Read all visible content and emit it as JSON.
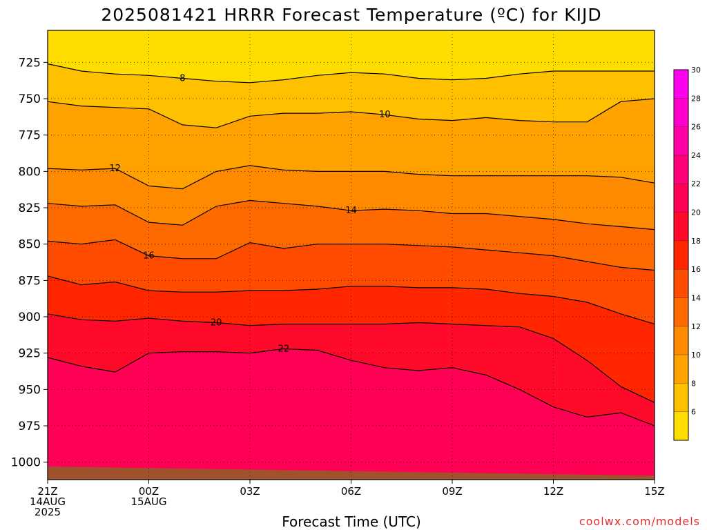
{
  "chart_data": {
    "type": "heatmap",
    "title": "2025081421 HRRR Forecast Temperature (ºC) for KIJD",
    "xlabel": "Forecast Time (UTC)",
    "ylabel": "",
    "y_axis": {
      "levels": [
        1000,
        975,
        950,
        925,
        900,
        875,
        850,
        825,
        800,
        775,
        750,
        725
      ],
      "ticks": [
        "1000",
        "975",
        "950",
        "925",
        "900",
        "875",
        "850",
        "825",
        "800",
        "775",
        "750",
        "725"
      ],
      "range": [
        1012,
        703
      ]
    },
    "x_axis": {
      "range_hours": [
        21,
        39
      ],
      "ticks": [
        {
          "hour": 21,
          "lines": [
            "21Z",
            "14AUG",
            "2025"
          ]
        },
        {
          "hour": 24,
          "lines": [
            "00Z",
            "15AUG"
          ]
        },
        {
          "hour": 27,
          "lines": [
            "03Z"
          ]
        },
        {
          "hour": 30,
          "lines": [
            "06Z"
          ]
        },
        {
          "hour": 33,
          "lines": [
            "09Z"
          ]
        },
        {
          "hour": 36,
          "lines": [
            "12Z"
          ]
        },
        {
          "hour": 39,
          "lines": [
            "15Z"
          ]
        }
      ]
    },
    "grid": true,
    "colorbar": {
      "placement": "right",
      "tick_labels": [
        "6",
        "8",
        "10",
        "12",
        "14",
        "16",
        "18",
        "20",
        "22",
        "24",
        "26",
        "28",
        "30"
      ],
      "bands": [
        {
          "from": 5,
          "to": 7,
          "color": "#ffdd00"
        },
        {
          "from": 7,
          "to": 9,
          "color": "#ffc000"
        },
        {
          "from": 9,
          "to": 11,
          "color": "#ffa200"
        },
        {
          "from": 11,
          "to": 13,
          "color": "#ff8a00"
        },
        {
          "from": 13,
          "to": 15,
          "color": "#ff6a00"
        },
        {
          "from": 15,
          "to": 17,
          "color": "#ff4c00"
        },
        {
          "from": 17,
          "to": 19,
          "color": "#ff2600"
        },
        {
          "from": 19,
          "to": 21,
          "color": "#ff0a2a"
        },
        {
          "from": 21,
          "to": 23,
          "color": "#ff0054"
        },
        {
          "from": 23,
          "to": 25,
          "color": "#ff007a"
        },
        {
          "from": 25,
          "to": 27,
          "color": "#ff00a4"
        },
        {
          "from": 27,
          "to": 29,
          "color": "#ff00cc"
        },
        {
          "from": 29,
          "to": 31,
          "color": "#ff00ee"
        }
      ]
    },
    "hours": [
      21,
      22,
      23,
      24,
      25,
      26,
      27,
      28,
      29,
      30,
      31,
      32,
      33,
      34,
      35,
      36,
      37,
      38,
      39
    ],
    "isotherms": [
      {
        "value": 8,
        "label": "8",
        "pressures": [
          726,
          731,
          733,
          734,
          736,
          738,
          739,
          737,
          734,
          732,
          733,
          736,
          737,
          736,
          733,
          731,
          731,
          731,
          731
        ]
      },
      {
        "value": 10,
        "label": "10",
        "pressures": [
          752,
          755,
          756,
          757,
          768,
          770,
          762,
          760,
          760,
          759,
          761,
          764,
          765,
          763,
          765,
          766,
          766,
          752,
          750
        ]
      },
      {
        "value": 12,
        "label": "12",
        "pressures": [
          798,
          799,
          798,
          810,
          812,
          800,
          796,
          799,
          800,
          800,
          800,
          802,
          803,
          803,
          803,
          803,
          803,
          804,
          808
        ]
      },
      {
        "value": 14,
        "label": "14",
        "pressures": [
          822,
          824,
          823,
          835,
          837,
          824,
          820,
          822,
          824,
          827,
          826,
          827,
          829,
          829,
          831,
          833,
          836,
          838,
          840
        ]
      },
      {
        "value": 16,
        "label": "16",
        "pressures": [
          848,
          850,
          847,
          858,
          860,
          860,
          849,
          853,
          850,
          850,
          850,
          851,
          852,
          854,
          856,
          858,
          862,
          866,
          868
        ]
      },
      {
        "value": 18,
        "label": "",
        "pressures": [
          872,
          878,
          876,
          882,
          883,
          883,
          882,
          882,
          881,
          879,
          879,
          880,
          880,
          881,
          884,
          886,
          890,
          898,
          905
        ]
      },
      {
        "value": 20,
        "label": "20",
        "pressures": [
          898,
          902,
          903,
          901,
          903,
          904,
          906,
          905,
          905,
          905,
          905,
          904,
          905,
          906,
          907,
          915,
          930,
          948,
          959
        ]
      },
      {
        "value": 22,
        "label": "22",
        "pressures": [
          928,
          934,
          938,
          925,
          924,
          924,
          925,
          922,
          923,
          930,
          935,
          937,
          935,
          940,
          950,
          962,
          969,
          966,
          975
        ]
      }
    ]
  },
  "credit": "coolwx.com/models"
}
